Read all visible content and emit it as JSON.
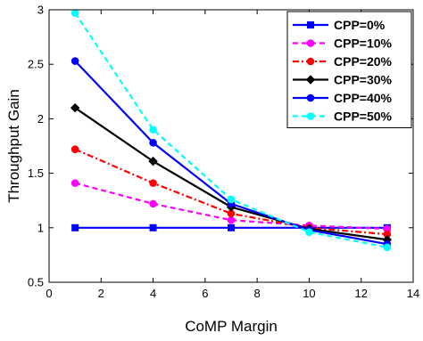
{
  "chart_data": {
    "type": "line",
    "xlabel": "CoMP Margin",
    "ylabel": "Throughput Gain",
    "xlim": [
      0,
      14
    ],
    "ylim": [
      0.5,
      3
    ],
    "xticks": [
      0,
      2,
      4,
      6,
      8,
      10,
      12,
      14
    ],
    "yticks": [
      0.5,
      1,
      1.5,
      2,
      2.5,
      3
    ],
    "xtick_labels": [
      "0",
      "2",
      "4",
      "6",
      "8",
      "10",
      "12",
      "14"
    ],
    "ytick_labels": [
      "0.5",
      "1",
      "1.5",
      "2",
      "2.5",
      "3"
    ],
    "grid": false,
    "legend_position": "top-right",
    "x": [
      1,
      4,
      7,
      10,
      13
    ],
    "series": [
      {
        "name": "CPP=0%",
        "values": [
          1.0,
          1.0,
          1.0,
          1.0,
          1.0
        ],
        "color": "#0000ff",
        "dash": "solid",
        "marker": "square"
      },
      {
        "name": "CPP=10%",
        "values": [
          1.41,
          1.22,
          1.07,
          1.02,
          0.99
        ],
        "color": "#ff00ff",
        "dash": "dashed",
        "marker": "circle"
      },
      {
        "name": "CPP=20%",
        "values": [
          1.72,
          1.41,
          1.13,
          1.0,
          0.94
        ],
        "color": "#ff0000",
        "dash": "dashdot",
        "marker": "circle"
      },
      {
        "name": "CPP=30%",
        "values": [
          2.1,
          1.61,
          1.19,
          0.99,
          0.89
        ],
        "color": "#000000",
        "dash": "solid",
        "marker": "diamond"
      },
      {
        "name": "CPP=40%",
        "values": [
          2.53,
          1.78,
          1.22,
          0.98,
          0.85
        ],
        "color": "#0000ff",
        "dash": "solid",
        "marker": "circle"
      },
      {
        "name": "CPP=50%",
        "values": [
          2.97,
          1.9,
          1.26,
          0.96,
          0.82
        ],
        "color": "#00ffff",
        "dash": "dashed",
        "marker": "circle"
      }
    ]
  }
}
